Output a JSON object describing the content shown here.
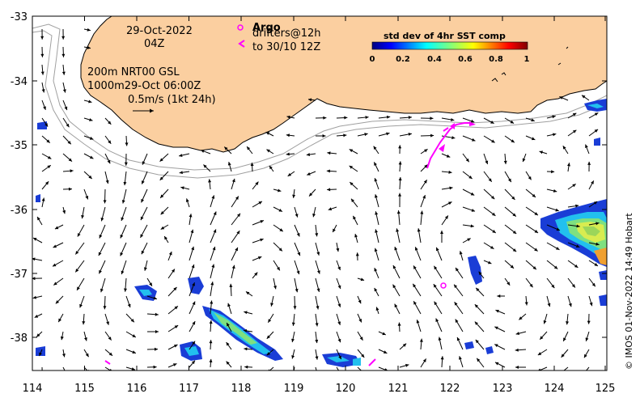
{
  "map": {
    "datetime_line1": "29-Oct-2022",
    "datetime_line2": "04Z",
    "current_label_line1": "200m  NRT00 GSL",
    "current_label_line2": "1000m29-Oct 06:00Z",
    "scale_label": "0.5m/s (1kt 24h)",
    "argo_label": "Argo",
    "drifters_line1": "drifters@12h",
    "drifters_line2": "to 30/10 12Z",
    "credit": "© IMOS 01-Nov-2022 14:49 Hobart",
    "land_color": "#fbcfa0",
    "drifter_color": "#ff00ff"
  },
  "colorbar": {
    "title": "std dev of 4hr SST comp",
    "ticks": [
      "0",
      "0.2",
      "0.4",
      "0.6",
      "0.8",
      "1"
    ],
    "range": [
      0,
      1
    ]
  },
  "axes": {
    "x_ticks": [
      "114",
      "115",
      "116",
      "117",
      "118",
      "119",
      "120",
      "121",
      "122",
      "123",
      "124",
      "125"
    ],
    "y_ticks": [
      "-33",
      "-34",
      "-35",
      "-36",
      "-37",
      "-38"
    ],
    "lon_range": [
      114,
      125
    ],
    "lat_range": [
      -38.5,
      -33
    ]
  }
}
